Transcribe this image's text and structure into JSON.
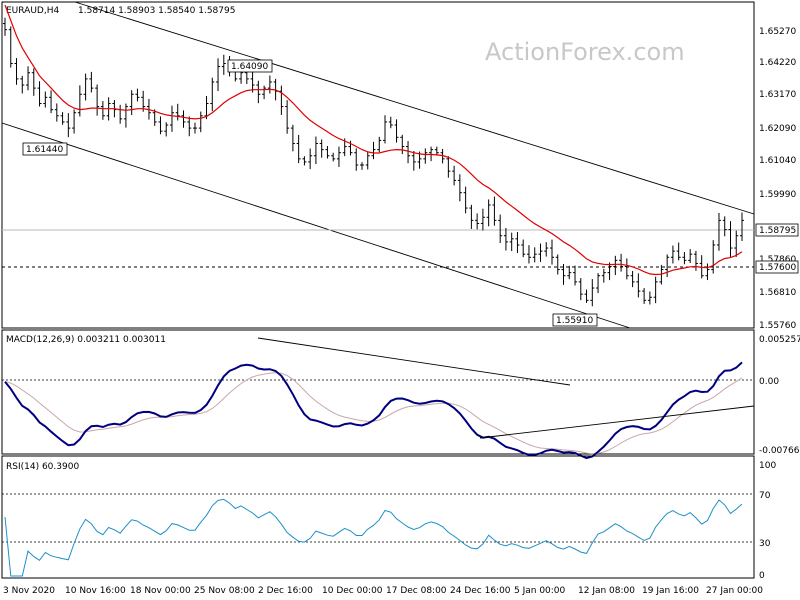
{
  "header": {
    "symbol": "EURAUD,H4",
    "ohlc": "1.58714 1.58903 1.58540 1.58795"
  },
  "watermark": "ActionForex.com",
  "colors": {
    "price": "#000000",
    "ma": "#e00000",
    "macd": "#000080",
    "signal": "#c8a8a8",
    "rsi": "#1e90c8",
    "grid": "#000000"
  },
  "chart_data": [
    {
      "type": "candlestick",
      "title": "EURAUD,H4",
      "ylim": [
        1.553,
        1.659
      ],
      "y_ticks": [
        "1.65270",
        "1.64220",
        "1.63170",
        "1.62090",
        "1.61040",
        "1.59990",
        "1.58795",
        "1.57860",
        "1.57600",
        "1.56810",
        "1.55760"
      ],
      "last_price": "1.58795",
      "support_level": "1.57600",
      "x_ticks": [
        "3 Nov 2020",
        "10 Nov 16:00",
        "18 Nov 00:00",
        "25 Nov 08:00",
        "2 Dec 16:00",
        "10 Dec 00:00",
        "17 Dec 08:00",
        "24 Dec 16:00",
        "5 Jan 00:00",
        "12 Jan 08:00",
        "19 Jan 16:00",
        "27 Jan 00:00"
      ],
      "annotations": [
        "1.61440",
        "1.64090",
        "1.55910"
      ],
      "closes": [
        1.65,
        1.639,
        1.634,
        1.632,
        1.636,
        1.631,
        1.626,
        1.628,
        1.624,
        1.622,
        1.62,
        1.618,
        1.623,
        1.629,
        1.634,
        1.631,
        1.625,
        1.622,
        1.626,
        1.624,
        1.621,
        1.625,
        1.629,
        1.628,
        1.625,
        1.623,
        1.62,
        1.617,
        1.619,
        1.623,
        1.622,
        1.62,
        1.618,
        1.618,
        1.622,
        1.626,
        1.633,
        1.638,
        1.639,
        1.637,
        1.634,
        1.636,
        1.634,
        1.632,
        1.629,
        1.631,
        1.633,
        1.63,
        1.625,
        1.618,
        1.613,
        1.608,
        1.607,
        1.609,
        1.613,
        1.611,
        1.609,
        1.608,
        1.61,
        1.612,
        1.61,
        1.606,
        1.606,
        1.609,
        1.611,
        1.614,
        1.62,
        1.619,
        1.615,
        1.612,
        1.609,
        1.607,
        1.608,
        1.61,
        1.611,
        1.61,
        1.608,
        1.604,
        1.601,
        1.597,
        1.592,
        1.588,
        1.587,
        1.589,
        1.593,
        1.588,
        1.583,
        1.581,
        1.582,
        1.58,
        1.577,
        1.576,
        1.577,
        1.578,
        1.579,
        1.576,
        1.572,
        1.57,
        1.571,
        1.568,
        1.564,
        1.562,
        1.566,
        1.57,
        1.571,
        1.573,
        1.575,
        1.573,
        1.57,
        1.568,
        1.565,
        1.562,
        1.563,
        1.568,
        1.572,
        1.576,
        1.578,
        1.576,
        1.575,
        1.577,
        1.574,
        1.57,
        1.572,
        1.58,
        1.588,
        1.585,
        1.579,
        1.583,
        1.588
      ],
      "ma_values": [
        1.658,
        1.653,
        1.648,
        1.644,
        1.641,
        1.638,
        1.635,
        1.633,
        1.631,
        1.629,
        1.627,
        1.6255,
        1.6245,
        1.624,
        1.6242,
        1.6245,
        1.6245,
        1.6243,
        1.6243,
        1.6243,
        1.624,
        1.6238,
        1.624,
        1.6243,
        1.6243,
        1.624,
        1.6235,
        1.6228,
        1.6223,
        1.622,
        1.6218,
        1.6215,
        1.6212,
        1.621,
        1.6212,
        1.6218,
        1.623,
        1.6245,
        1.6262,
        1.6275,
        1.6285,
        1.6295,
        1.6302,
        1.6305,
        1.6305,
        1.6305,
        1.6306,
        1.6304,
        1.6295,
        1.628,
        1.6262,
        1.6242,
        1.6222,
        1.6205,
        1.6192,
        1.618,
        1.6168,
        1.6156,
        1.6146,
        1.6138,
        1.613,
        1.612,
        1.611,
        1.6103,
        1.6099,
        1.6099,
        1.6104,
        1.6108,
        1.611,
        1.6109,
        1.6105,
        1.61,
        1.6096,
        1.6094,
        1.6094,
        1.6093,
        1.6091,
        1.6085,
        1.6076,
        1.6064,
        1.6048,
        1.603,
        1.6012,
        1.5997,
        1.5986,
        1.5972,
        1.5956,
        1.594,
        1.5926,
        1.5912,
        1.5897,
        1.5882,
        1.5869,
        1.5858,
        1.5848,
        1.5837,
        1.5824,
        1.581,
        1.5799,
        1.5786,
        1.5771,
        1.5755,
        1.5745,
        1.574,
        1.5737,
        1.5736,
        1.5737,
        1.5737,
        1.5734,
        1.5729,
        1.5722,
        1.5713,
        1.5706,
        1.5704,
        1.5705,
        1.5711,
        1.5718,
        1.5722,
        1.5725,
        1.5729,
        1.573,
        1.5727,
        1.5726,
        1.5733,
        1.5747,
        1.5756,
        1.5759,
        1.5766,
        1.5778
      ]
    },
    {
      "type": "line",
      "title": "MACD(12,26,9) 0.003211 0.003011",
      "ylim": [
        -0.0085,
        0.006
      ],
      "y_ticks": [
        "0.005257",
        "0.00",
        "-0.007663"
      ]
    },
    {
      "type": "line",
      "title": "RSI(14) 60.3900",
      "ylim": [
        0,
        100
      ],
      "y_ticks": [
        "100",
        "70",
        "30",
        "0"
      ]
    }
  ]
}
